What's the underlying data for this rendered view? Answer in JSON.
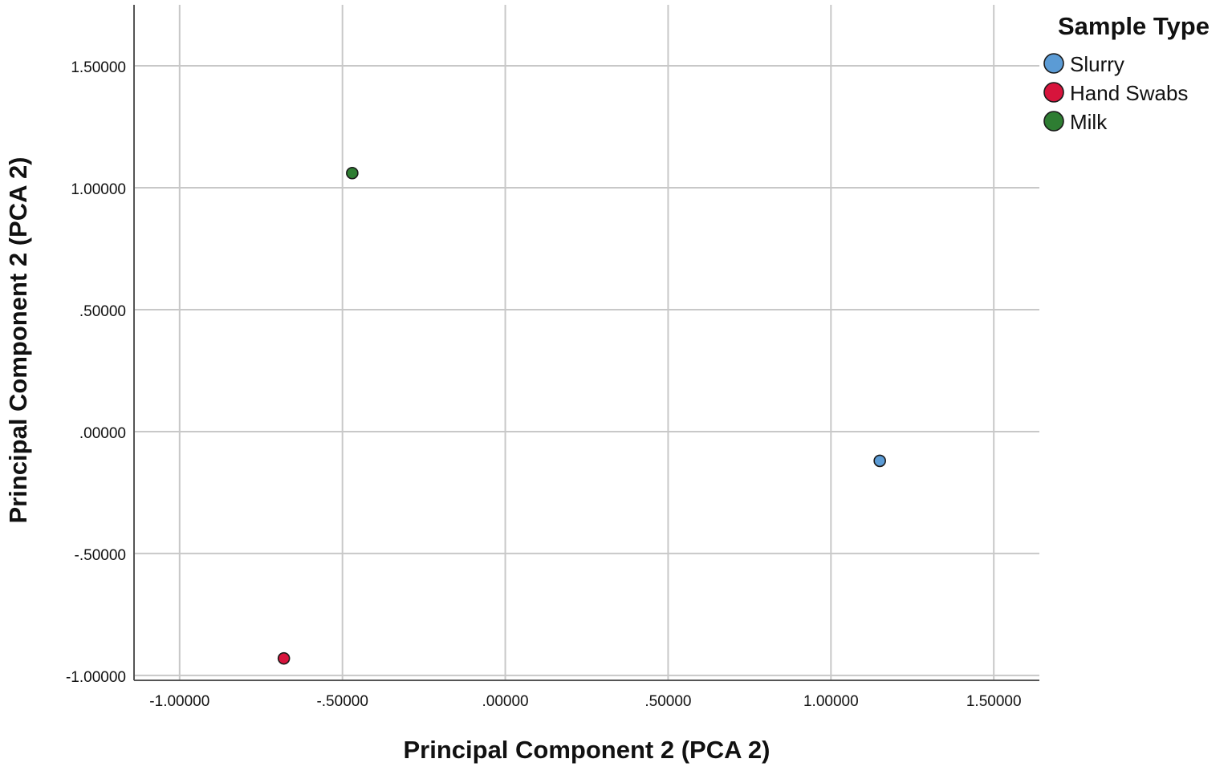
{
  "chart_data": {
    "type": "scatter",
    "xlabel": "Principal Component 2 (PCA 2)",
    "ylabel": "Principal Component 2 (PCA 2)",
    "xlim": [
      -1.14,
      1.64
    ],
    "ylim": [
      -1.02,
      1.75
    ],
    "x_ticks": [
      -1.0,
      -0.5,
      0.0,
      0.5,
      1.0,
      1.5
    ],
    "x_tick_labels": [
      "-1.00000",
      "-.50000",
      ".00000",
      ".50000",
      "1.00000",
      "1.50000"
    ],
    "y_ticks": [
      -1.0,
      -0.5,
      0.0,
      0.5,
      1.0,
      1.5
    ],
    "y_tick_labels": [
      "-1.00000",
      "-.50000",
      ".00000",
      ".50000",
      "1.00000",
      "1.50000"
    ],
    "grid": true,
    "legend": {
      "title": "Sample Type",
      "placement": "top-right"
    },
    "series": [
      {
        "name": "Slurry",
        "color": "#5b9bd5",
        "points": [
          {
            "x": 1.15,
            "y": -0.12
          }
        ]
      },
      {
        "name": "Hand Swabs",
        "color": "#d7143c",
        "points": [
          {
            "x": -0.68,
            "y": -0.93
          }
        ]
      },
      {
        "name": "Milk",
        "color": "#2e7d32",
        "points": [
          {
            "x": -0.47,
            "y": 1.06
          }
        ]
      }
    ]
  }
}
